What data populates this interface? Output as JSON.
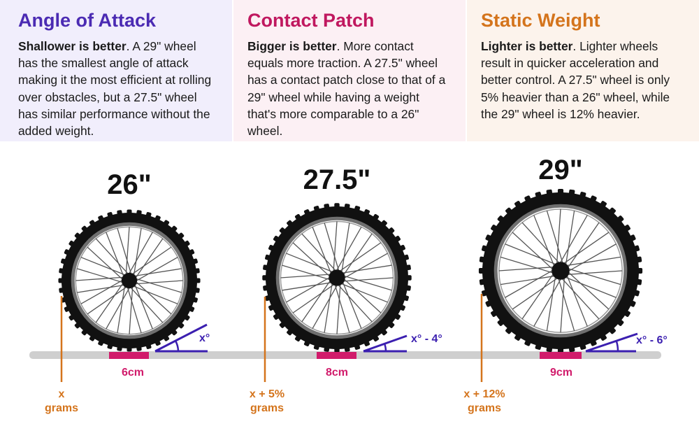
{
  "panels": [
    {
      "title": "Angle of Attack",
      "title_color": "#4b2bb3",
      "lead": "Shallower is better",
      "body": ". A 29\" wheel has the smallest angle of attack making it the most efficient at rolling over obstacles, but a 27.5\" wheel has similar performance without the added weight."
    },
    {
      "title": "Contact Patch",
      "title_color": "#c0185f",
      "lead": "Bigger is better",
      "body": ". More contact equals more traction. A 27.5\" wheel has a contact patch close to that of a 29\" wheel while having a weight that's more comparable to a 26\" wheel."
    },
    {
      "title": "Static Weight",
      "title_color": "#d4741c",
      "lead": "Lighter is better",
      "body": ".  Lighter wheels result in quicker acceleration and better control.  A 27.5\" wheel is only 5% heavier than a 26\" wheel, while the 29\" wheel is 12% heavier."
    }
  ],
  "wheels": [
    {
      "size": "26\"",
      "angle": "x°",
      "patch": "6cm",
      "weight_line1": "x",
      "weight_line2": "grams"
    },
    {
      "size": "27.5\"",
      "angle": "x° - 4°",
      "patch": "8cm",
      "weight_line1": "x + 5%",
      "weight_line2": "grams"
    },
    {
      "size": "29\"",
      "angle": "x° - 6°",
      "patch": "9cm",
      "weight_line1": "x + 12%",
      "weight_line2": "grams"
    }
  ],
  "colors": {
    "angle": "#3b1fb0",
    "patch": "#d11b6b",
    "weight": "#d4741c",
    "ground": "#cfcfcf",
    "tire": "#111111",
    "rim": "#6f6f6f"
  }
}
